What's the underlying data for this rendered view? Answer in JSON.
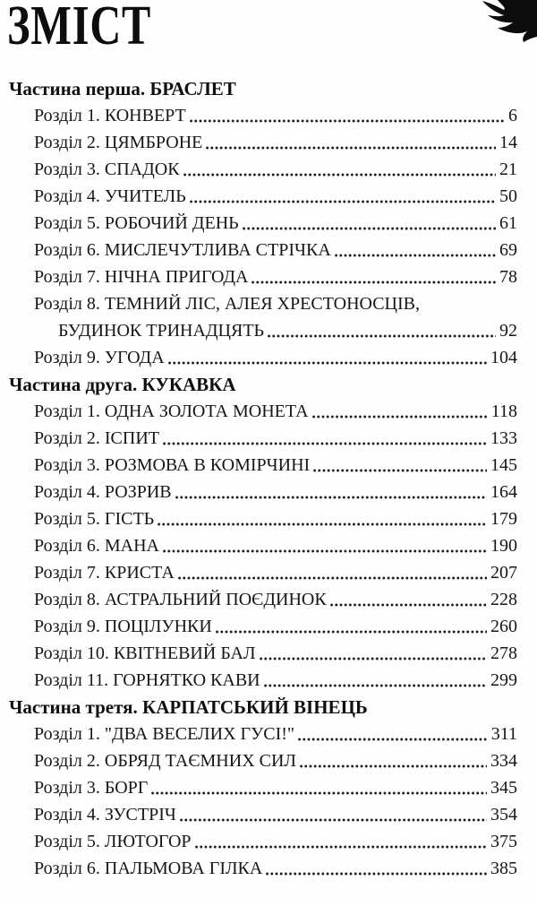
{
  "page": {
    "title": "ЗМІСТ"
  },
  "colors": {
    "text": "#141414",
    "background": "#fefefe",
    "ink": "#0c0c0c"
  },
  "decoration": {
    "corner_icon": "ink-flourish-corner"
  },
  "toc": {
    "parts": [
      {
        "heading": "Частина перша. БРАСЛЕТ",
        "entries": [
          {
            "label": "Розділ 1. КОНВЕРТ",
            "page": "6"
          },
          {
            "label": "Розділ 2. ЦЯМБРОНЕ",
            "page": "14"
          },
          {
            "label": "Розділ 3. СПАДОК",
            "page": "21"
          },
          {
            "label": "Розділ 4. УЧИТЕЛЬ",
            "page": "50"
          },
          {
            "label": "Розділ 5. РОБОЧИЙ ДЕНЬ",
            "page": "61"
          },
          {
            "label": "Розділ 6. МИСЛЕЧУТЛИВА СТРІЧКА",
            "page": "69"
          },
          {
            "label": "Розділ 7. НІЧНА ПРИГОДА",
            "page": "78"
          },
          {
            "label": "Розділ 8. ТЕМНИЙ ЛІС, АЛЕЯ ХРЕСТОНОСЦІВ,",
            "continuation": "БУДИНОК ТРИНАДЦЯТЬ",
            "page": "92"
          },
          {
            "label": "Розділ 9. УГОДА",
            "page": "104"
          }
        ]
      },
      {
        "heading": "Частина друга. КУКАВКА",
        "entries": [
          {
            "label": "Розділ 1. ОДНА ЗОЛОТА МОНЕТА",
            "page": "118"
          },
          {
            "label": "Розділ 2. ІСПИТ",
            "page": "133"
          },
          {
            "label": "Розділ 3. РОЗМОВА В КОМІРЧИНІ",
            "page": "145"
          },
          {
            "label": "Розділ 4. РОЗРИВ",
            "page": "164"
          },
          {
            "label": "Розділ 5. ГІСТЬ",
            "page": "179"
          },
          {
            "label": "Розділ 6. МАНА",
            "page": "190"
          },
          {
            "label": "Розділ 7. КРИСТА",
            "page": "207"
          },
          {
            "label": "Розділ 8. АСТРАЛЬНИЙ ПОЄДИНОК",
            "page": "228"
          },
          {
            "label": "Розділ 9. ПОЦІЛУНКИ",
            "page": "260"
          },
          {
            "label": "Розділ 10. КВІТНЕВИЙ БАЛ",
            "page": "278"
          },
          {
            "label": "Розділ 11. ГОРНЯТКО КАВИ",
            "page": "299"
          }
        ]
      },
      {
        "heading": "Частина третя. КАРПАТСЬКИЙ ВІНЕЦЬ",
        "entries": [
          {
            "label": "Розділ 1. \"ДВА ВЕСЕЛИХ ГУСІ!\"",
            "page": "311"
          },
          {
            "label": "Розділ 2. ОБРЯД ТАЄМНИХ СИЛ",
            "page": "334"
          },
          {
            "label": "Розділ 3. БОРГ",
            "page": "345"
          },
          {
            "label": "Розділ 4. ЗУСТРІЧ",
            "page": "354"
          },
          {
            "label": "Розділ 5. ЛЮТОГОР",
            "page": "375"
          },
          {
            "label": "Розділ 6. ПАЛЬМОВА ГІЛКА",
            "page": "385"
          }
        ]
      }
    ]
  }
}
